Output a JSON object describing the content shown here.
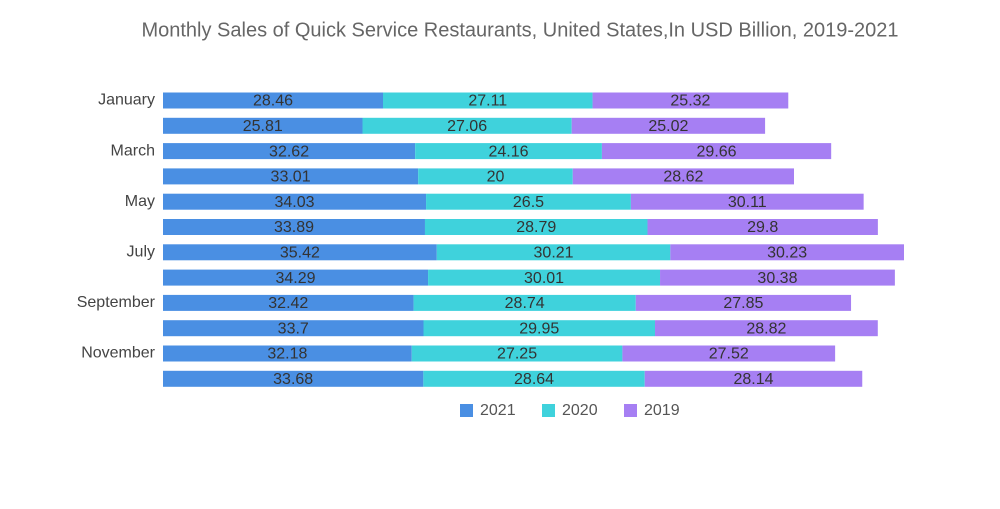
{
  "chart_data": {
    "type": "stacked-barh",
    "title": "Monthly Sales of Quick Service Restaurants, United States,In USD Billion, 2019-2021",
    "categories": [
      "January",
      null,
      "March",
      null,
      "May",
      null,
      "July",
      null,
      "September",
      null,
      "November",
      null
    ],
    "series": [
      {
        "name": "2021",
        "color": "#4a8fe3",
        "values": [
          28.46,
          25.81,
          32.62,
          33.01,
          34.03,
          33.89,
          35.42,
          34.29,
          32.42,
          33.7,
          32.18,
          33.68
        ]
      },
      {
        "name": "2020",
        "color": "#3fd2dc",
        "values": [
          27.11,
          27.06,
          24.16,
          20,
          26.5,
          28.79,
          30.21,
          30.01,
          28.74,
          29.95,
          27.25,
          28.64
        ]
      },
      {
        "name": "2019",
        "color": "#a67ff3",
        "values": [
          25.32,
          25.02,
          29.66,
          28.62,
          30.11,
          29.8,
          30.23,
          30.38,
          27.85,
          28.82,
          27.52,
          28.14
        ]
      }
    ],
    "legend": "bottom"
  }
}
